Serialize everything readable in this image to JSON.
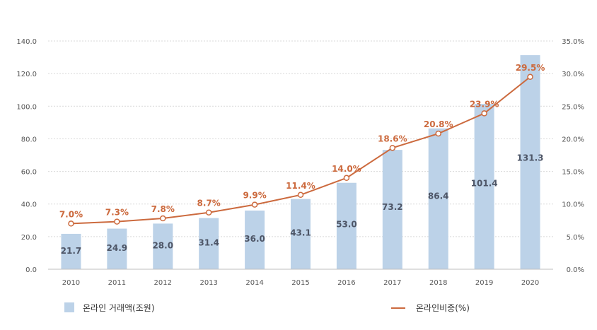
{
  "chart_data": {
    "type": "bar",
    "categories": [
      "2010",
      "2011",
      "2012",
      "2013",
      "2014",
      "2015",
      "2016",
      "2017",
      "2018",
      "2019",
      "2020"
    ],
    "series": [
      {
        "name": "온라인 거래액(조원)",
        "type": "bar",
        "axis": "left",
        "values": [
          21.7,
          24.9,
          28.0,
          31.4,
          36.0,
          43.1,
          53.0,
          73.2,
          86.4,
          101.4,
          131.3
        ],
        "labels": [
          "21.7",
          "24.9",
          "28.0",
          "31.4",
          "36.0",
          "43.1",
          "53.0",
          "73.2",
          "86.4",
          "101.4",
          "131.3"
        ],
        "color": "#bcd2e8"
      },
      {
        "name": "온라인비중(%)",
        "type": "line",
        "axis": "right",
        "values": [
          7.0,
          7.3,
          7.8,
          8.7,
          9.9,
          11.4,
          14.0,
          18.6,
          20.8,
          23.9,
          29.5
        ],
        "labels": [
          "7.0%",
          "7.3%",
          "7.8%",
          "8.7%",
          "9.9%",
          "11.4%",
          "14.0%",
          "18.6%",
          "20.8%",
          "23.9%",
          "29.5%"
        ],
        "color": "#cc6a3e"
      }
    ],
    "y_left": {
      "min": 0,
      "max": 140,
      "ticks": [
        0,
        20,
        40,
        60,
        80,
        100,
        120,
        140
      ],
      "tick_labels": [
        "0.0",
        "20.0",
        "40.0",
        "60.0",
        "80.0",
        "100.0",
        "120.0",
        "140.0"
      ]
    },
    "y_right": {
      "min": 0,
      "max": 35,
      "ticks": [
        0,
        5,
        10,
        15,
        20,
        25,
        30,
        35
      ],
      "tick_labels": [
        "0.0%",
        "5.0%",
        "10.0%",
        "15.0%",
        "20.0%",
        "25.0%",
        "30.0%",
        "35.0%"
      ]
    },
    "title": "",
    "xlabel": "",
    "grid": "horizontal-dashed",
    "legend": "bottom"
  }
}
